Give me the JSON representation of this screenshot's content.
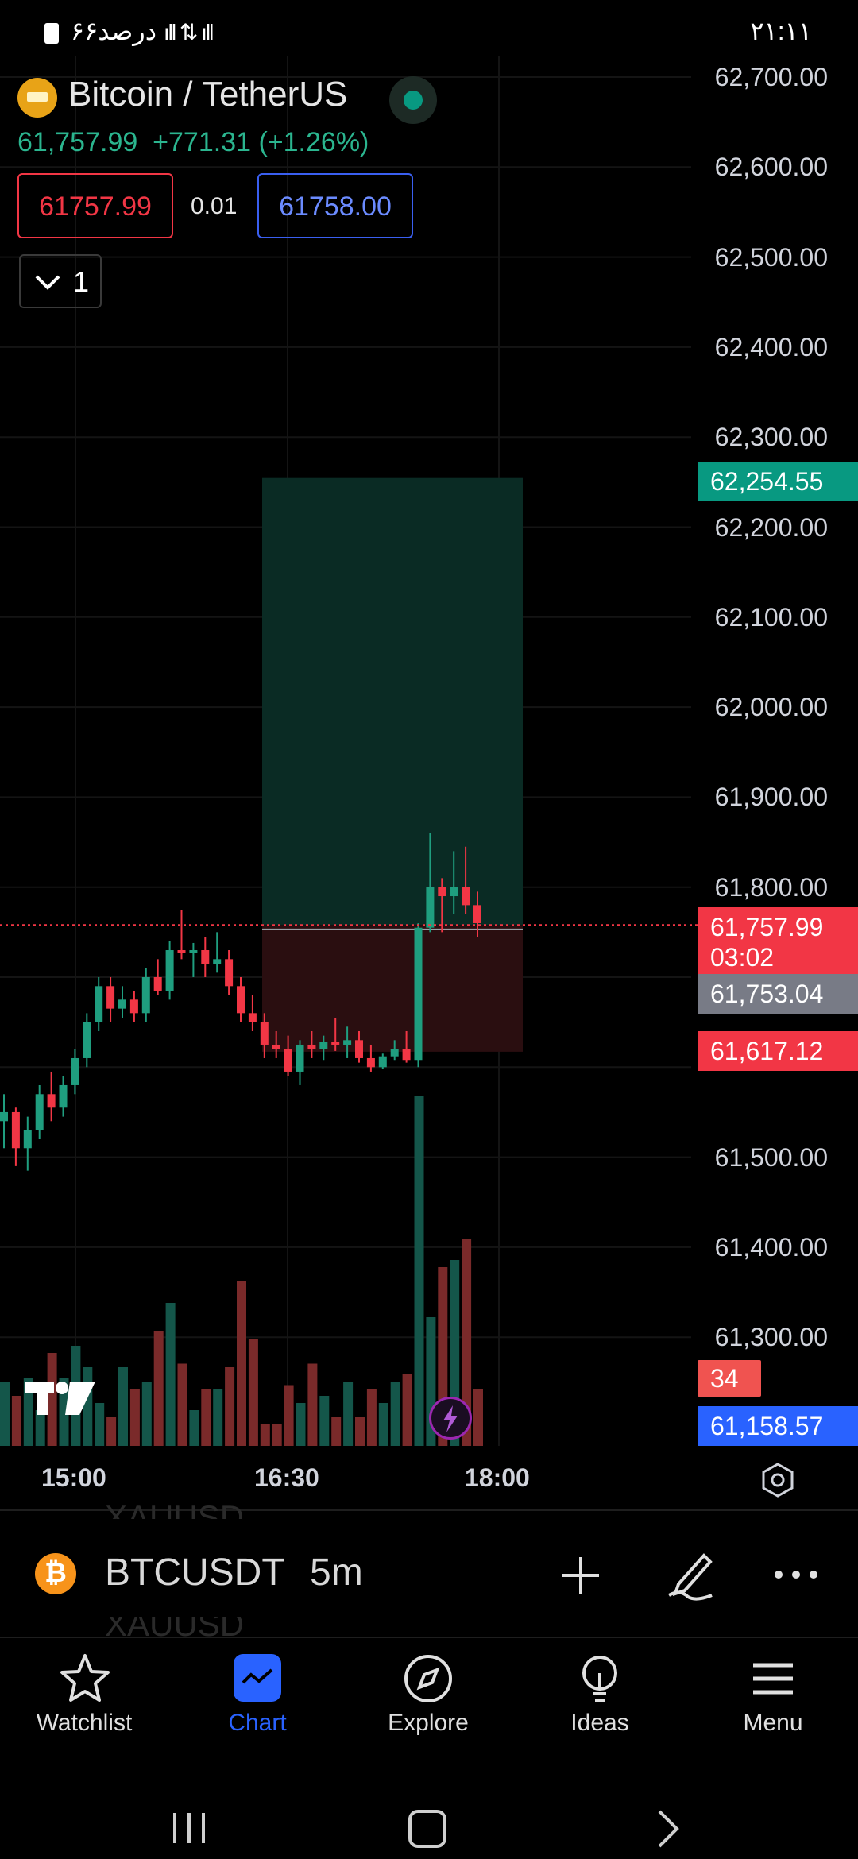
{
  "status_bar": {
    "left_text": "۶۶درصد",
    "time": "۲۱:۱۱"
  },
  "header": {
    "pair_title": "Bitcoin / TetherUS",
    "last_price": "61,757.99",
    "change": "+771.31 (+1.26%)",
    "sell_price": "61757.99",
    "spread": "0.01",
    "buy_price": "61758.00",
    "layers_count": "1"
  },
  "colors": {
    "up": "#1f9e7f",
    "down": "#f23645",
    "buy": "#3a5ff0",
    "accent": "#2962ff"
  },
  "price_axis": {
    "labels": [
      "62,700.00",
      "62,600.00",
      "62,500.00",
      "62,400.00",
      "62,300.00",
      "62,200.00",
      "62,100.00",
      "62,000.00",
      "61,900.00",
      "61,800.00",
      "61,500.00",
      "61,400.00",
      "61,300.00"
    ],
    "target_badge": "62,254.55",
    "last_badge": "61,757.99",
    "countdown": "03:02",
    "mid_badge": "61,753.04",
    "stop_badge": "61,617.12",
    "volume_badge": "34",
    "low_badge": "61,158.57"
  },
  "time_axis": [
    "15:00",
    "16:30",
    "18:00"
  ],
  "chart_data": {
    "type": "candlestick",
    "symbol": "BTCUSDT",
    "interval": "5m",
    "ylim": [
      61250,
      62720
    ],
    "candles": [
      {
        "o": 61540,
        "h": 61570,
        "l": 61510,
        "c": 61550
      },
      {
        "o": 61550,
        "h": 61555,
        "l": 61490,
        "c": 61510
      },
      {
        "o": 61510,
        "h": 61545,
        "l": 61485,
        "c": 61530
      },
      {
        "o": 61530,
        "h": 61580,
        "l": 61520,
        "c": 61570
      },
      {
        "o": 61570,
        "h": 61595,
        "l": 61540,
        "c": 61555
      },
      {
        "o": 61555,
        "h": 61590,
        "l": 61545,
        "c": 61580
      },
      {
        "o": 61580,
        "h": 61620,
        "l": 61570,
        "c": 61610
      },
      {
        "o": 61610,
        "h": 61660,
        "l": 61600,
        "c": 61650
      },
      {
        "o": 61650,
        "h": 61700,
        "l": 61640,
        "c": 61690
      },
      {
        "o": 61690,
        "h": 61700,
        "l": 61650,
        "c": 61665
      },
      {
        "o": 61665,
        "h": 61690,
        "l": 61655,
        "c": 61675
      },
      {
        "o": 61675,
        "h": 61685,
        "l": 61650,
        "c": 61660
      },
      {
        "o": 61660,
        "h": 61710,
        "l": 61650,
        "c": 61700
      },
      {
        "o": 61700,
        "h": 61720,
        "l": 61680,
        "c": 61685
      },
      {
        "o": 61685,
        "h": 61740,
        "l": 61675,
        "c": 61730
      },
      {
        "o": 61730,
        "h": 61775,
        "l": 61720,
        "c": 61728
      },
      {
        "o": 61728,
        "h": 61738,
        "l": 61700,
        "c": 61730
      },
      {
        "o": 61730,
        "h": 61745,
        "l": 61700,
        "c": 61715
      },
      {
        "o": 61715,
        "h": 61750,
        "l": 61705,
        "c": 61720
      },
      {
        "o": 61720,
        "h": 61730,
        "l": 61680,
        "c": 61690
      },
      {
        "o": 61690,
        "h": 61700,
        "l": 61650,
        "c": 61660
      },
      {
        "o": 61660,
        "h": 61680,
        "l": 61640,
        "c": 61650
      },
      {
        "o": 61650,
        "h": 61660,
        "l": 61610,
        "c": 61625
      },
      {
        "o": 61625,
        "h": 61640,
        "l": 61610,
        "c": 61620
      },
      {
        "o": 61620,
        "h": 61635,
        "l": 61590,
        "c": 61595
      },
      {
        "o": 61595,
        "h": 61630,
        "l": 61580,
        "c": 61625
      },
      {
        "o": 61625,
        "h": 61640,
        "l": 61610,
        "c": 61620
      },
      {
        "o": 61620,
        "h": 61635,
        "l": 61608,
        "c": 61628
      },
      {
        "o": 61628,
        "h": 61655,
        "l": 61618,
        "c": 61625
      },
      {
        "o": 61625,
        "h": 61645,
        "l": 61610,
        "c": 61630
      },
      {
        "o": 61630,
        "h": 61640,
        "l": 61605,
        "c": 61610
      },
      {
        "o": 61610,
        "h": 61625,
        "l": 61595,
        "c": 61600
      },
      {
        "o": 61600,
        "h": 61615,
        "l": 61598,
        "c": 61612
      },
      {
        "o": 61612,
        "h": 61630,
        "l": 61608,
        "c": 61620
      },
      {
        "o": 61620,
        "h": 61640,
        "l": 61605,
        "c": 61608
      },
      {
        "o": 61608,
        "h": 61760,
        "l": 61600,
        "c": 61755
      },
      {
        "o": 61755,
        "h": 61860,
        "l": 61750,
        "c": 61800
      },
      {
        "o": 61800,
        "h": 61810,
        "l": 61750,
        "c": 61790
      },
      {
        "o": 61790,
        "h": 61840,
        "l": 61770,
        "c": 61800
      },
      {
        "o": 61800,
        "h": 61845,
        "l": 61770,
        "c": 61780
      },
      {
        "o": 61780,
        "h": 61795,
        "l": 61745,
        "c": 61760
      }
    ],
    "volume_color_rule": "green if close >= open else red"
  },
  "symbol_bar": {
    "ticker": "BTCUSDT",
    "interval": "5m",
    "ghost_above": "XAUUSD",
    "ghost_below": "XAUUSD"
  },
  "nav": {
    "items": [
      {
        "label": "Watchlist",
        "icon": "star-icon"
      },
      {
        "label": "Chart",
        "icon": "chart-icon"
      },
      {
        "label": "Explore",
        "icon": "compass-icon"
      },
      {
        "label": "Ideas",
        "icon": "lightbulb-icon"
      },
      {
        "label": "Menu",
        "icon": "menu-icon"
      }
    ]
  }
}
